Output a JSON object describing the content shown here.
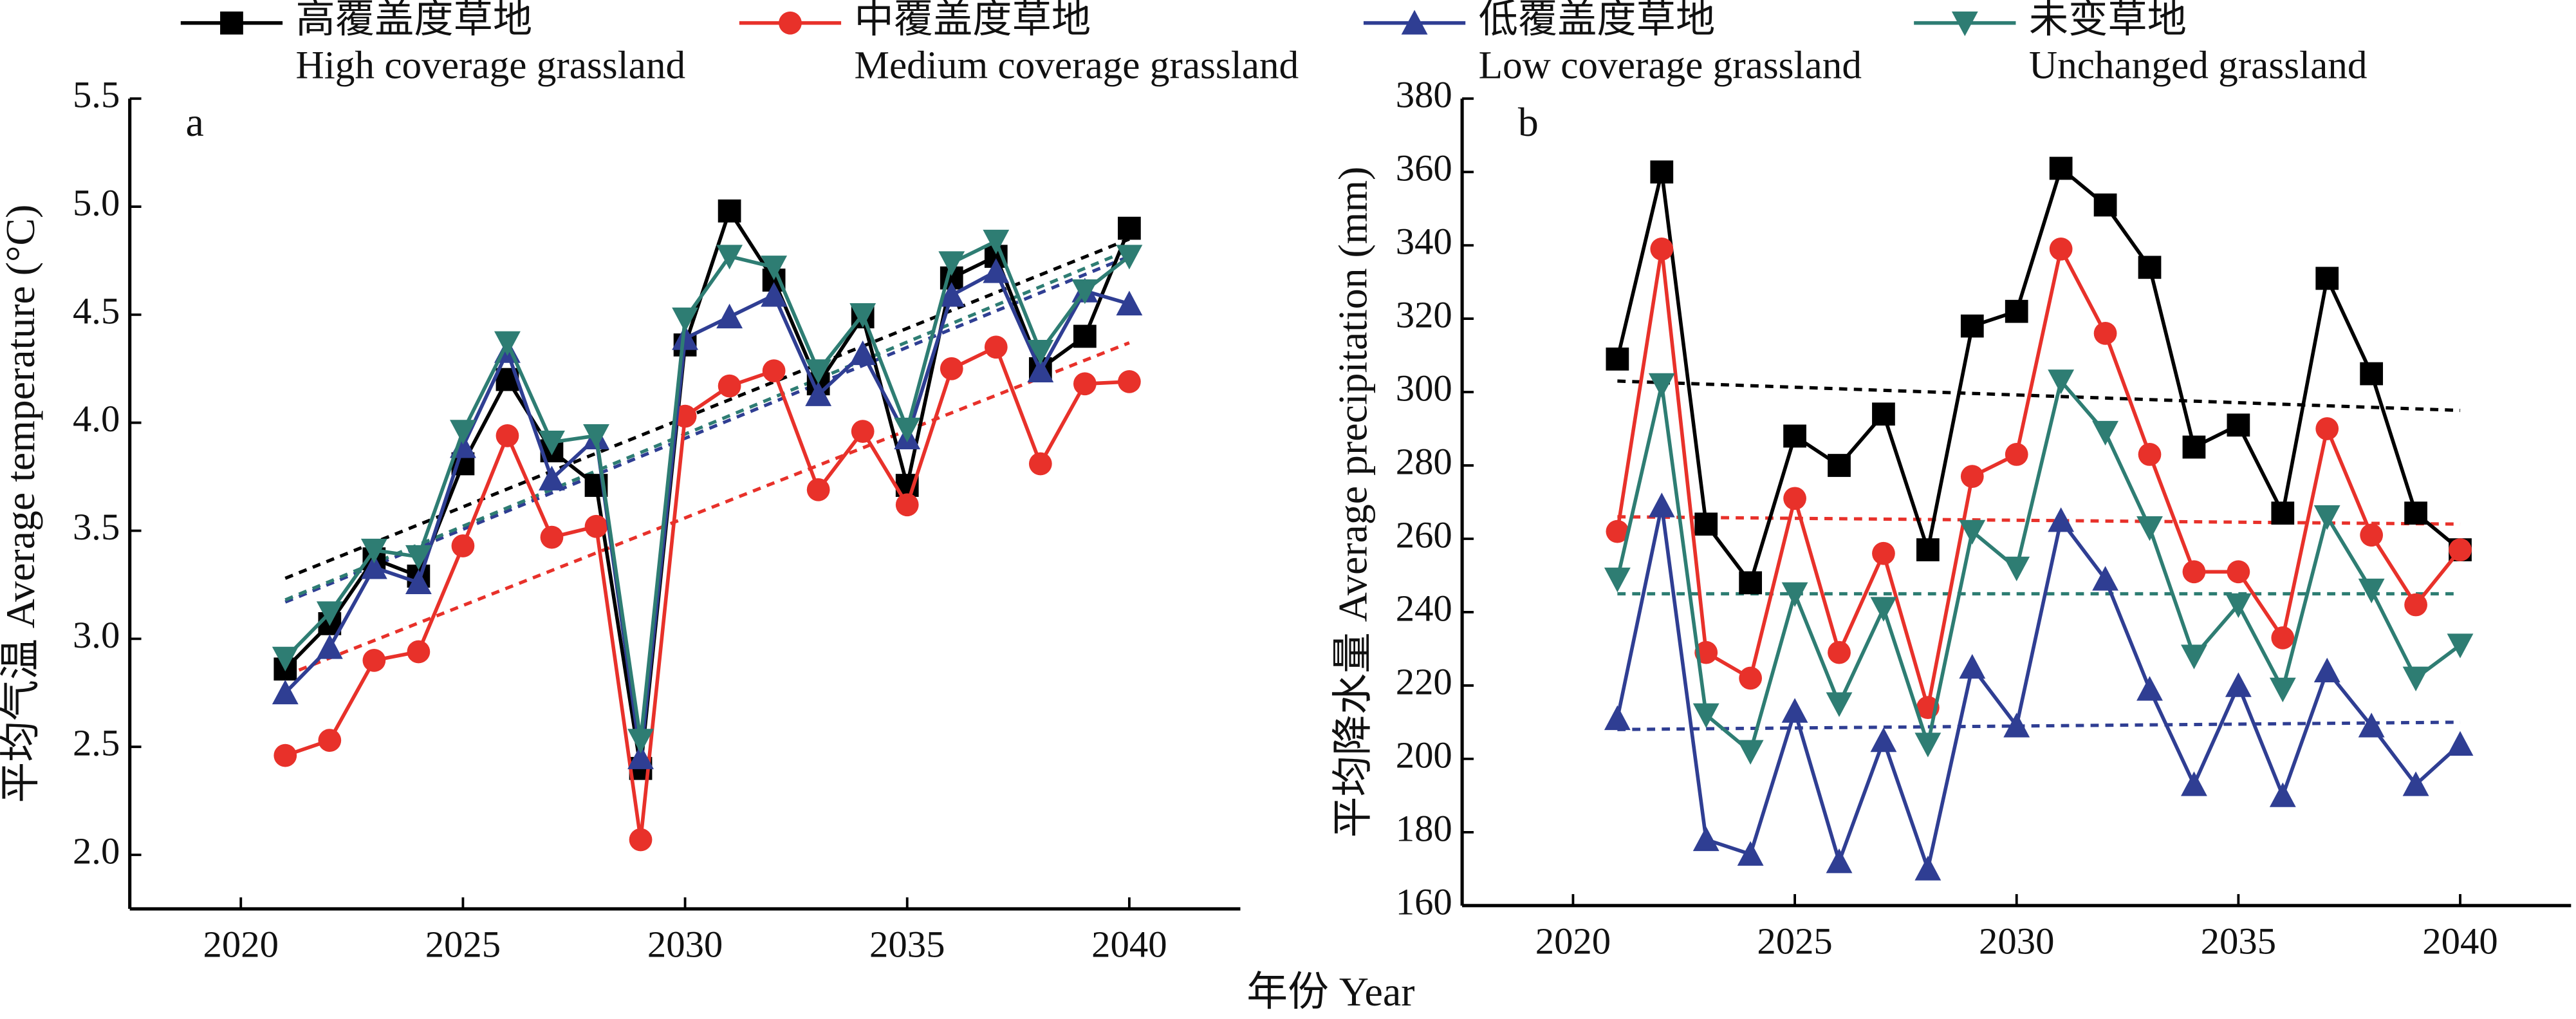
{
  "chart_data": [
    {
      "type": "line",
      "label": "a",
      "ylabel": "平均气温 Average temperature (°C)",
      "xlabel": "年份 Year",
      "x": [
        2021,
        2022,
        2023,
        2024,
        2025,
        2026,
        2027,
        2028,
        2029,
        2030,
        2031,
        2032,
        2033,
        2034,
        2035,
        2036,
        2037,
        2038,
        2039,
        2040
      ],
      "xlim": [
        2017.5,
        2042.5
      ],
      "xticks": [
        2020,
        2025,
        2030,
        2035,
        2040
      ],
      "ylim": [
        1.75,
        5.5
      ],
      "yticks": [
        {
          "value": 2.0,
          "label": "2.0"
        },
        2.5,
        {
          "value": 3.0,
          "label": "3.0"
        },
        3.5,
        {
          "value": 4.0,
          "label": "4.0"
        },
        4.5,
        {
          "value": 5.0,
          "label": "5.0"
        },
        5.5
      ],
      "series": [
        {
          "name": "高覆盖度草地",
          "name_en": "High coverage grassland",
          "color": "#000000",
          "marker": "square",
          "values": [
            2.86,
            3.07,
            3.37,
            3.29,
            3.81,
            4.2,
            3.87,
            3.71,
            2.4,
            4.36,
            4.98,
            4.66,
            4.18,
            4.49,
            3.71,
            4.67,
            4.77,
            4.25,
            4.4,
            4.9
          ],
          "trend": [
            3.28,
            4.85
          ]
        },
        {
          "name": "中覆盖度草地",
          "name_en": "Medium coverage grassland",
          "color": "#e8312a",
          "marker": "circle",
          "values": [
            2.46,
            2.53,
            2.9,
            2.94,
            3.43,
            3.94,
            3.47,
            3.52,
            2.07,
            4.03,
            4.17,
            4.24,
            3.69,
            3.96,
            3.62,
            4.25,
            4.35,
            3.81,
            4.18,
            4.19
          ],
          "trend": [
            2.83,
            4.37
          ]
        },
        {
          "name": "低覆盖度草地",
          "name_en": "Low coverage grassland",
          "color": "#2f3e93",
          "marker": "triangle-up",
          "values": [
            2.75,
            2.96,
            3.33,
            3.26,
            3.89,
            4.33,
            3.74,
            3.93,
            2.45,
            4.39,
            4.49,
            4.59,
            4.13,
            4.32,
            3.93,
            4.59,
            4.7,
            4.24,
            4.61,
            4.55
          ],
          "trend": [
            3.17,
            4.77
          ]
        },
        {
          "name": "未变草地",
          "name_en": "Unchanged grassland",
          "color": "#2e7d73",
          "marker": "triangle-down",
          "values": [
            2.91,
            3.12,
            3.41,
            3.38,
            3.96,
            4.37,
            3.91,
            3.94,
            2.53,
            4.48,
            4.77,
            4.72,
            4.24,
            4.5,
            3.97,
            4.74,
            4.84,
            4.33,
            4.61,
            4.77
          ],
          "trend": [
            3.18,
            4.8
          ]
        }
      ]
    },
    {
      "type": "line",
      "label": "b",
      "ylabel": "平均降水量 Average precipitation (mm)",
      "x": [
        2021,
        2022,
        2023,
        2024,
        2025,
        2026,
        2027,
        2028,
        2029,
        2030,
        2031,
        2032,
        2033,
        2034,
        2035,
        2036,
        2037,
        2038,
        2039,
        2040
      ],
      "xlim": [
        2017.5,
        2042.5
      ],
      "xticks": [
        2020,
        2025,
        2030,
        2035,
        2040
      ],
      "ylim": [
        160,
        380
      ],
      "yticks": [
        160,
        180,
        200,
        220,
        240,
        260,
        280,
        300,
        320,
        340,
        360,
        380
      ],
      "series": [
        {
          "color": "#000000",
          "marker": "square",
          "values": [
            309,
            360,
            264,
            248,
            288,
            280,
            294,
            257,
            318,
            322,
            361,
            351,
            334,
            285,
            291,
            267,
            331,
            305,
            267,
            257
          ],
          "trend": [
            303,
            295
          ]
        },
        {
          "color": "#e8312a",
          "marker": "circle",
          "values": [
            262,
            339,
            229,
            222,
            271,
            229,
            256,
            214,
            277,
            283,
            339,
            316,
            283,
            251,
            251,
            233,
            290,
            261,
            242,
            257
          ],
          "trend": [
            266,
            264
          ]
        },
        {
          "color": "#2f3e93",
          "marker": "triangle-up",
          "values": [
            211,
            269,
            178,
            174,
            213,
            172,
            205,
            170,
            225,
            209,
            265,
            249,
            219,
            193,
            220,
            190,
            224,
            209,
            193,
            204
          ],
          "trend": [
            208,
            210
          ]
        },
        {
          "color": "#2e7d73",
          "marker": "triangle-down",
          "values": [
            249,
            302,
            212,
            202,
            245,
            215,
            241,
            204,
            262,
            252,
            303,
            289,
            263,
            228,
            242,
            219,
            266,
            246,
            222,
            231
          ],
          "trend": [
            245,
            245
          ]
        }
      ]
    }
  ]
}
